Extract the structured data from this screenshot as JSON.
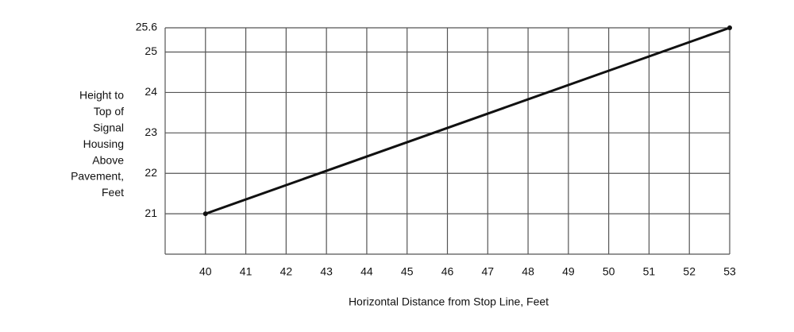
{
  "chart_data": {
    "type": "line",
    "ylabel": [
      "Height to",
      "Top of",
      "Signal",
      "Housing",
      "Above",
      "Pavement,",
      "Feet"
    ],
    "xlabel": "Horizontal Distance from Stop Line, Feet",
    "x": [
      40,
      53
    ],
    "series": [
      {
        "color": "#111111",
        "values": [
          21,
          25.6
        ]
      }
    ],
    "xlim": [
      39,
      53
    ],
    "ylim": [
      20,
      25.6
    ],
    "xticks": [
      40,
      41,
      42,
      43,
      44,
      45,
      46,
      47,
      48,
      49,
      50,
      51,
      52,
      53
    ],
    "yticks": [
      21,
      22,
      23,
      24,
      25,
      25.6
    ],
    "grid": true
  }
}
